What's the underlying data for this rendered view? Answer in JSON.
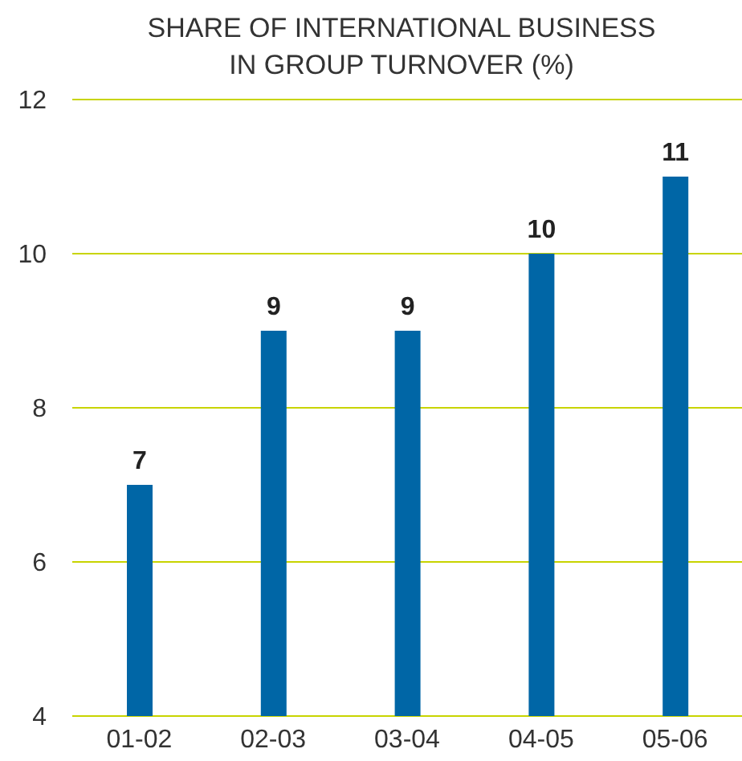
{
  "chart_data": {
    "type": "bar",
    "title": "SHARE OF INTERNATIONAL BUSINESS\nIN GROUP TURNOVER (%)",
    "categories": [
      "01-02",
      "02-03",
      "03-04",
      "04-05",
      "05-06"
    ],
    "values": [
      7,
      9,
      9,
      10,
      11
    ],
    "color": "#0066a6",
    "ylim": [
      4,
      12
    ],
    "yticks": [
      4,
      6,
      8,
      10,
      12
    ],
    "grid": "y",
    "data_labels": true
  }
}
